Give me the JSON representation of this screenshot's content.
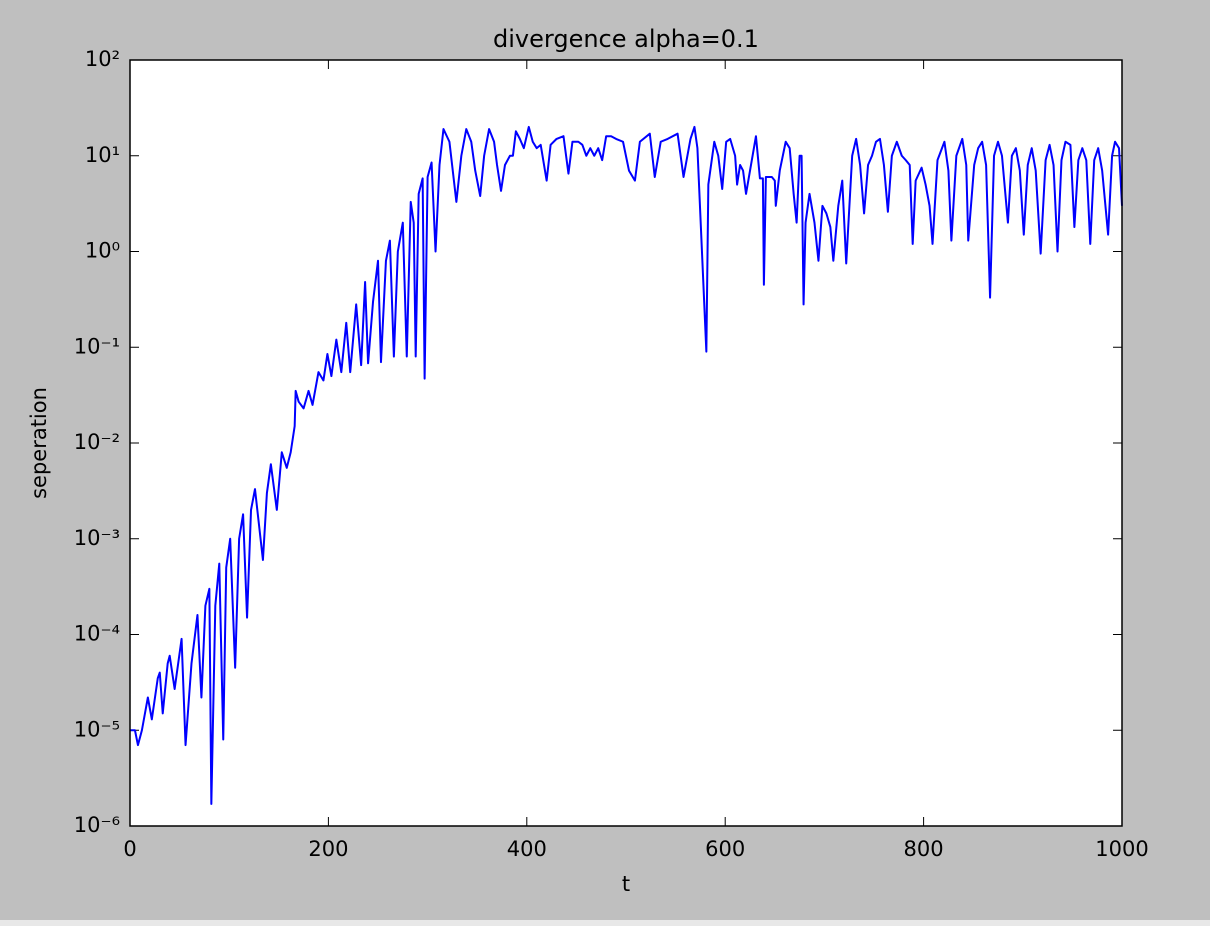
{
  "chart_data": {
    "type": "line",
    "title": "divergence alpha=0.1",
    "x_label": "t",
    "y_label": "seperation",
    "log_y": true,
    "color": "#0000ff",
    "xlim": [
      0,
      1000
    ],
    "xticks": [
      0,
      200,
      400,
      600,
      800,
      1000
    ],
    "ylim": [
      1e-06,
      100
    ],
    "yticks": [
      {
        "value": 1e-06,
        "label": "10⁻⁶"
      },
      {
        "value": 1e-05,
        "label": "10⁻⁵"
      },
      {
        "value": 0.0001,
        "label": "10⁻⁴"
      },
      {
        "value": 0.001,
        "label": "10⁻³"
      },
      {
        "value": 0.01,
        "label": "10⁻²"
      },
      {
        "value": 0.1,
        "label": "10⁻¹"
      },
      {
        "value": 1,
        "label": "10⁰"
      },
      {
        "value": 10,
        "label": "10¹"
      },
      {
        "value": 100,
        "label": "10²"
      }
    ],
    "x": [
      0,
      5,
      8,
      12,
      18,
      22,
      28,
      30,
      33,
      38,
      40,
      45,
      52,
      56,
      62,
      68,
      72,
      76,
      80,
      82,
      86,
      90,
      94,
      97,
      101,
      106,
      110,
      114,
      118,
      122,
      126,
      134,
      138,
      142,
      148,
      153,
      158,
      162,
      166,
      167,
      170,
      175,
      180,
      184,
      190,
      195,
      199,
      203,
      208,
      213,
      218,
      222,
      228,
      233,
      237,
      240,
      245,
      250,
      253,
      258,
      262,
      266,
      270,
      275,
      279,
      283,
      286,
      288,
      291,
      295,
      297,
      300,
      304,
      308,
      312,
      316,
      322,
      329,
      334,
      339,
      344,
      348,
      353,
      357,
      362,
      367,
      370,
      374,
      378,
      383,
      386,
      389,
      393,
      397,
      402,
      406,
      410,
      414,
      420,
      424,
      430,
      437,
      442,
      446,
      452,
      456,
      460,
      464,
      468,
      472,
      476,
      480,
      485,
      490,
      497,
      503,
      509,
      514,
      524,
      529,
      535,
      542,
      552,
      558,
      565,
      569,
      572,
      581,
      583,
      589,
      593,
      597,
      601,
      605,
      610,
      612,
      615,
      618,
      621,
      631,
      635,
      638,
      639,
      641,
      647,
      650,
      651,
      655,
      661,
      665,
      669,
      672,
      675,
      677,
      679,
      681,
      685,
      690,
      694,
      698,
      702,
      706,
      709,
      714,
      718,
      722,
      728,
      732,
      736,
      740,
      744,
      748,
      752,
      756,
      760,
      764,
      768,
      773,
      778,
      782,
      786,
      789,
      792,
      798,
      802,
      806,
      809,
      814,
      821,
      825,
      828,
      833,
      839,
      843,
      845,
      851,
      855,
      859,
      863,
      867,
      871,
      875,
      879,
      885,
      889,
      893,
      897,
      901,
      905,
      909,
      913,
      918,
      923,
      927,
      931,
      935,
      939,
      943,
      948,
      952,
      956,
      960,
      964,
      968,
      972,
      976,
      980,
      986,
      990,
      993,
      997,
      1000
    ],
    "values": [
      1e-05,
      1e-05,
      7e-06,
      1e-05,
      2.2e-05,
      1.3e-05,
      3.5e-05,
      4e-05,
      1.5e-05,
      5e-05,
      6e-05,
      2.7e-05,
      9e-05,
      7e-06,
      5e-05,
      0.00016,
      2.2e-05,
      0.0002,
      0.0003,
      1.7e-06,
      0.0002,
      0.00055,
      8e-06,
      0.0005,
      0.001,
      4.5e-05,
      0.001,
      0.0018,
      0.00015,
      0.002,
      0.0033,
      0.0006,
      0.003,
      0.006,
      0.002,
      0.008,
      0.0055,
      0.008,
      0.015,
      0.035,
      0.027,
      0.023,
      0.035,
      0.025,
      0.055,
      0.045,
      0.085,
      0.05,
      0.12,
      0.055,
      0.18,
      0.055,
      0.28,
      0.065,
      0.48,
      0.068,
      0.3,
      0.8,
      0.07,
      0.8,
      1.3,
      0.08,
      1,
      2,
      0.08,
      3.3,
      2,
      0.08,
      4,
      5.8,
      0.047,
      6,
      8.5,
      1,
      8,
      19,
      14,
      3.3,
      10,
      19,
      14,
      7,
      3.8,
      10,
      19,
      14,
      8,
      4.3,
      8,
      10,
      10,
      18,
      15,
      12,
      20,
      14,
      12,
      13,
      5.5,
      13,
      15,
      16,
      6.5,
      14,
      14,
      13,
      10,
      12,
      10,
      12,
      9,
      16,
      16,
      15,
      14,
      7,
      5.5,
      14,
      17,
      6,
      14,
      15,
      17,
      6,
      15,
      20,
      12,
      0.09,
      5,
      14,
      10,
      4.5,
      14,
      15,
      10,
      5,
      8,
      7,
      4,
      16,
      5.8,
      5.8,
      0.45,
      6,
      6,
      5.5,
      3,
      7,
      14,
      12,
      4,
      2,
      10,
      10,
      0.28,
      2,
      4,
      2,
      0.8,
      3,
      2.5,
      1.8,
      0.8,
      3,
      5.5,
      0.75,
      10,
      15,
      8,
      2.5,
      8,
      10,
      14,
      15,
      8,
      2.6,
      10,
      14,
      10,
      9,
      8,
      1.2,
      5.5,
      7.5,
      5,
      3,
      1.2,
      9,
      14,
      7,
      1.3,
      10,
      15,
      8,
      1.3,
      8,
      12,
      14,
      8,
      0.33,
      10,
      14,
      10,
      2,
      10,
      12,
      7,
      1.5,
      8,
      12,
      7,
      0.95,
      9,
      13,
      8,
      1,
      9,
      14,
      13,
      1.8,
      9,
      12,
      9,
      1.2,
      9,
      12,
      7,
      1.5,
      10,
      14,
      12,
      3
    ]
  }
}
